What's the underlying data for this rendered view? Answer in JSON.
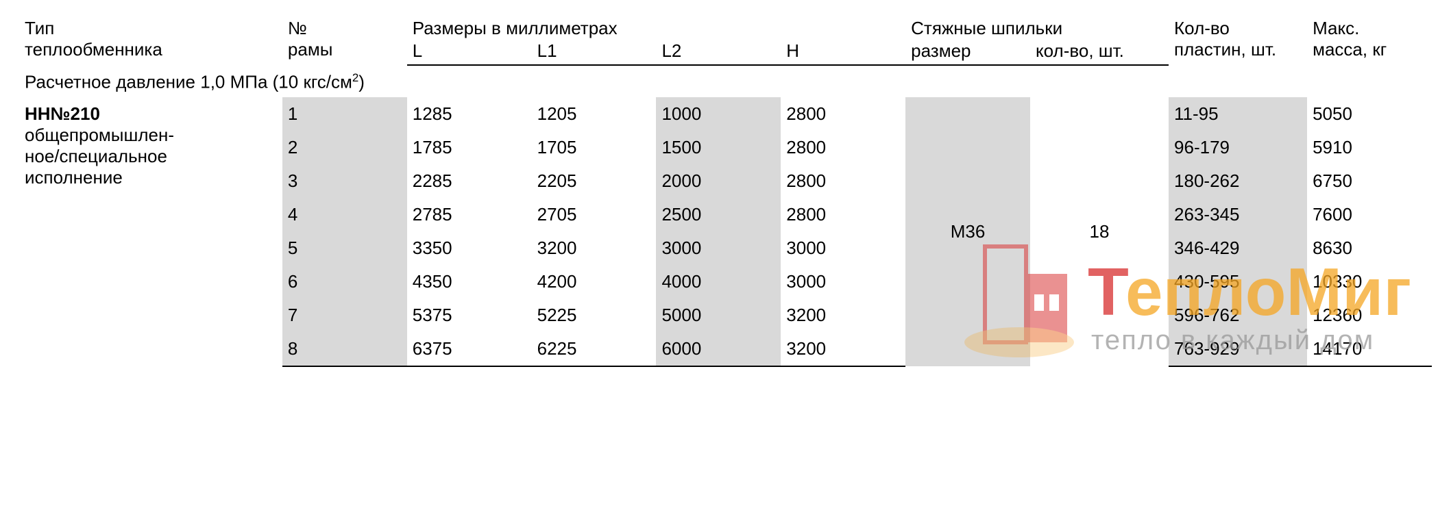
{
  "headers": {
    "type_l1": "Тип",
    "type_l2": "теплообменника",
    "frame_l1": "№",
    "frame_l2": "рамы",
    "dims": "Размеры в миллиметрах",
    "L": "L",
    "L1": "L1",
    "L2": "L2",
    "H": "H",
    "studs": "Стяжные шпильки",
    "stud_size": "размер",
    "stud_qty": "кол-во, шт.",
    "plates_l1": "Кол-во",
    "plates_l2": "пластин, шт.",
    "mass_l1": "Макс.",
    "mass_l2": "масса, кг"
  },
  "section_label_pre": "Расчетное давление 1,0 МПа (10 кгс/см",
  "section_label_sup": "2",
  "section_label_post": ")",
  "model": {
    "code": "НН№210",
    "desc_l1": "общепромышлен-",
    "desc_l2": "ное/специальное",
    "desc_l3": "исполнение"
  },
  "stud_size_value": "М36",
  "stud_qty_value": "18",
  "rows": [
    {
      "n": "1",
      "L": "1285",
      "L1": "1205",
      "L2": "1000",
      "H": "2800",
      "plates": "11-95",
      "mass": "5050"
    },
    {
      "n": "2",
      "L": "1785",
      "L1": "1705",
      "L2": "1500",
      "H": "2800",
      "plates": "96-179",
      "mass": "5910"
    },
    {
      "n": "3",
      "L": "2285",
      "L1": "2205",
      "L2": "2000",
      "H": "2800",
      "plates": "180-262",
      "mass": "6750"
    },
    {
      "n": "4",
      "L": "2785",
      "L1": "2705",
      "L2": "2500",
      "H": "2800",
      "plates": "263-345",
      "mass": "7600"
    },
    {
      "n": "5",
      "L": "3350",
      "L1": "3200",
      "L2": "3000",
      "H": "3000",
      "plates": "346-429",
      "mass": "8630"
    },
    {
      "n": "6",
      "L": "4350",
      "L1": "4200",
      "L2": "4000",
      "H": "3000",
      "plates": "430-595",
      "mass": "10330"
    },
    {
      "n": "7",
      "L": "5375",
      "L1": "5225",
      "L2": "5000",
      "H": "3200",
      "plates": "596-762",
      "mass": "12360"
    },
    {
      "n": "8",
      "L": "6375",
      "L1": "6225",
      "L2": "6000",
      "H": "3200",
      "plates": "763-929",
      "mass": "14170"
    }
  ],
  "colwidths_pct": [
    19,
    9,
    9,
    9,
    9,
    9,
    9,
    10,
    10,
    9
  ],
  "shaded_cols": [
    1,
    4,
    6,
    8
  ],
  "colors": {
    "shade": "#d9d9d9",
    "border": "#000000",
    "text": "#000000",
    "wm_red": "#d82e2e",
    "wm_orange": "#f5a623",
    "wm_gray": "#9a9a9a"
  },
  "watermark": {
    "brand_first": "Т",
    "brand_rest": "еплоМиг",
    "tagline": "тепло в каждый дом"
  }
}
